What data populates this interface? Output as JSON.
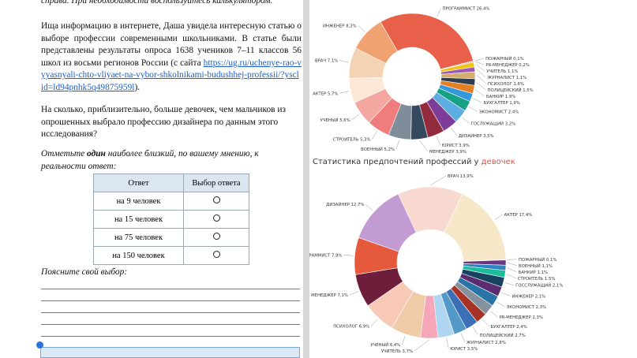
{
  "header_note": "справа. При необходимости воспользуйтесь калькулятором.",
  "paragraph": {
    "text": "Ища информацию в интернете, Даша увидела интересную статью о выборе профессии современными школьниками. В статье были представлены результаты опроса 1638 учеников 7–11 классов 56 школ из восьми регионов России (с сайта",
    "link": "https://ug.ru/uchenye-rao-vyyasnyali-chto-vliyaet-na-vybor-shkolnikami-budushhej-professii/?ysclid=ld94pnhk5q49875959l",
    "end": ")."
  },
  "question": "На сколько, приблизительно, больше девочек, чем мальчиков из опрошенных выбрало профессию дизайнера по данным этого исследования?",
  "instruction": {
    "before": "Отметьте",
    "bold": "один",
    "after": "наиболее близкий, по вашему мнению, к реальности ответ:"
  },
  "table": {
    "header": [
      "Ответ",
      "Выбор ответа"
    ],
    "rows": [
      "на 9 человек",
      "на 15 человек",
      "на 75 человек",
      "на 150 человек"
    ]
  },
  "explain_prompt": "Поясните свой выбор:",
  "chart_data": [
    {
      "type": "donut",
      "categories": [
        "ПРОГРАММИСТ",
        "ПОЖАРНЫЙ",
        "PR-МЕНЕДЖЕР",
        "УЧИТЕЛЬ",
        "ЖУРНАЛИСТ",
        "ПСИХОЛОГ",
        "ПОЛИЦЕЙСКИЙ",
        "БАНКИР",
        "БУХГАЛТЕР",
        "ЭКОНОМИСТ",
        "ГОСЛУЖАЩИЙ",
        "ДИЗАЙНЕР",
        "ЮРИСТ",
        "МЕНЕДЖЕР",
        "ВОЕННЫЙ",
        "СТРОИТЕЛЬ",
        "УЧЕНЫЙ",
        "АКТЕР",
        "ВРАЧ",
        "ИНЖЕНЕР"
      ],
      "values": [
        26.4,
        0.1,
        0.2,
        1.1,
        1.1,
        1.6,
        1.5,
        1.9,
        1.9,
        2.4,
        3.2,
        3.5,
        3.9,
        3.9,
        5.2,
        5.3,
        5.6,
        5.7,
        7.1,
        8.3
      ],
      "value_labels": [
        "26,4%",
        "0,1%",
        "0,2%",
        "1,1%",
        "1,1%",
        "1,6%",
        "1,5%",
        "1,9%",
        "1,9%",
        "2,4%",
        "3,2%",
        "3,5%",
        "3,9%",
        "3,9%",
        "5,2%",
        "5,3%",
        "5,6%",
        "5,7%",
        "7,1%",
        "8,3%"
      ],
      "colors": [
        "#e8604a",
        "#c0392b",
        "#8e44ad",
        "#f1c40f",
        "#9b59b6",
        "#d4ac6e",
        "#2c3e50",
        "#e67e22",
        "#3498db",
        "#16a085",
        "#5dade2",
        "#7d3c98",
        "#922b3e",
        "#34495e",
        "#7f8c9a",
        "#ef7d7d",
        "#f4a6a0",
        "#fde7d6",
        "#f3d3b3",
        "#f0a270"
      ]
    },
    {
      "type": "donut",
      "title": "Статистика предпочтений профессий у",
      "title_highlight": "девочек",
      "categories": [
        "ВРАЧ",
        "АКТЕР",
        "ПОЖАРНЫЙ",
        "ВОЕННЫЙ",
        "БАНКИР",
        "СТРОИТЕЛЬ",
        "ГОССЛУЖАЩИЙ",
        "ИНЖЕНЕР",
        "ЭКОНОМИСТ",
        "PR-МЕНЕДЖЕР",
        "БУХГАЛТЕР",
        "ПОЛИЦЕЙСКИЙ",
        "ЖУРНАЛИСТ",
        "ЮРИСТ",
        "УЧИТЕЛЬ",
        "УЧЕНЫЙ",
        "ПСИХОЛОГ",
        "МЕНЕДЖЕР",
        "ПРОГРАММИСТ",
        "ДИЗАЙНЕР"
      ],
      "values": [
        13.9,
        17.4,
        0.1,
        1.1,
        1.1,
        1.5,
        2.1,
        2.1,
        2.3,
        2.3,
        2.4,
        2.7,
        2.8,
        3.5,
        3.7,
        6.4,
        6.9,
        7.1,
        7.9,
        12.7
      ],
      "value_labels": [
        "13,9%",
        "17,4%",
        "0,1%",
        "1,1%",
        "1,1%",
        "1,5%",
        "2,1%",
        "2,1%",
        "2,3%",
        "2,3%",
        "2,4%",
        "2,7%",
        "2,8%",
        "3,5%",
        "3,7%",
        "6,4%",
        "6,9%",
        "7,1%",
        "7,9%",
        "12,7%"
      ],
      "colors": [
        "#f7d9d0",
        "#f6e7c8",
        "#1f2d3d",
        "#6c3483",
        "#2e86c1",
        "#1abc9c",
        "#154360",
        "#5b2c6f",
        "#2874a6",
        "#85929e",
        "#a93226",
        "#3b6fb6",
        "#5499c7",
        "#aed6f1",
        "#f5a6b8",
        "#f0cba8",
        "#f8c9b6",
        "#6e1e3a",
        "#e55a3c",
        "#c39bd3"
      ]
    }
  ]
}
